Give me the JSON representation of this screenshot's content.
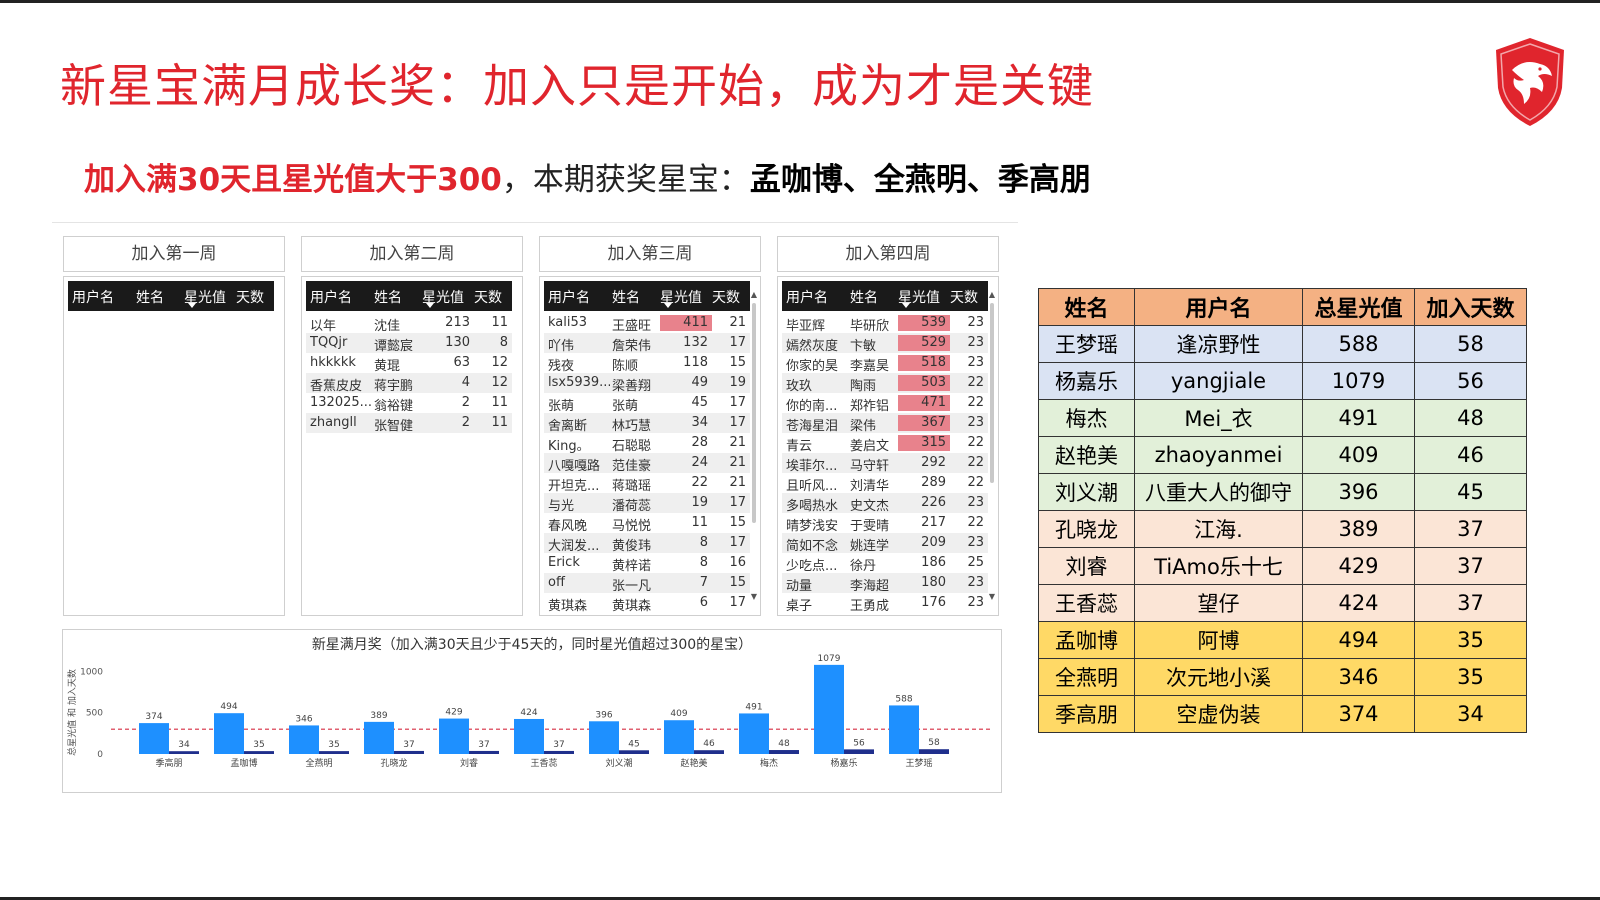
{
  "title": "新星宝满月成长奖：加入只是开始，成为才是关键",
  "subtitle": {
    "red": "加入满30天且星光值大于300",
    "sep": "，",
    "middle": "本期获奖星宝：",
    "winners": "孟咖博、全燕明、季高朋"
  },
  "colors": {
    "title_red": "#e0252d",
    "highlight": "#e8828c",
    "bar_total": "#1e90ff",
    "bar_days": "#1f2f8c",
    "threshold": "#e06070"
  },
  "columns": {
    "user": "用户名",
    "name": "姓名",
    "star": "星光值",
    "days": "天数"
  },
  "weeks": [
    {
      "title": "加入第一周",
      "rows": []
    },
    {
      "title": "加入第二周",
      "rows": [
        {
          "user": "以年",
          "name": "沈佳",
          "star": "213",
          "days": "11"
        },
        {
          "user": "TQQjr",
          "name": "谭懿宸",
          "star": "130",
          "days": "8"
        },
        {
          "user": "hkkkkk",
          "name": "黄琨",
          "star": "63",
          "days": "12"
        },
        {
          "user": "香蕉皮皮",
          "name": "蒋宇鹏",
          "star": "4",
          "days": "12"
        },
        {
          "user": "132025...",
          "name": "翁裕键",
          "star": "2",
          "days": "11"
        },
        {
          "user": "zhangll",
          "name": "张智健",
          "star": "2",
          "days": "11"
        }
      ]
    },
    {
      "title": "加入第三周",
      "rows": [
        {
          "user": "kali53",
          "name": "王盛旺",
          "star": "411",
          "days": "21",
          "hl": true
        },
        {
          "user": "吖伟",
          "name": "詹荣伟",
          "star": "132",
          "days": "17"
        },
        {
          "user": "残夜",
          "name": "陈顺",
          "star": "118",
          "days": "15"
        },
        {
          "user": "lsx5939...",
          "name": "梁善翔",
          "star": "49",
          "days": "19"
        },
        {
          "user": "张萌",
          "name": "张萌",
          "star": "45",
          "days": "17"
        },
        {
          "user": "舍离断",
          "name": "林巧慧",
          "star": "34",
          "days": "17"
        },
        {
          "user": "King。",
          "name": "石聪聪",
          "star": "28",
          "days": "21"
        },
        {
          "user": "八嘎嘎路",
          "name": "范佳豪",
          "star": "24",
          "days": "21"
        },
        {
          "user": "开坦克...",
          "name": "蒋璐瑶",
          "star": "22",
          "days": "21"
        },
        {
          "user": "与光",
          "name": "潘荷蕊",
          "star": "19",
          "days": "17"
        },
        {
          "user": "春风晚",
          "name": "马悦悦",
          "star": "11",
          "days": "15"
        },
        {
          "user": "大润发...",
          "name": "黄俊玮",
          "star": "8",
          "days": "17"
        },
        {
          "user": "Erick",
          "name": "黄梓诺",
          "star": "8",
          "days": "16"
        },
        {
          "user": "off",
          "name": "张一凡",
          "star": "7",
          "days": "15"
        },
        {
          "user": "黄琪森",
          "name": "黄琪森",
          "star": "6",
          "days": "17"
        }
      ]
    },
    {
      "title": "加入第四周",
      "rows": [
        {
          "user": "毕亚辉",
          "name": "毕研欣",
          "star": "539",
          "days": "23",
          "hl": true
        },
        {
          "user": "嫣然灰度",
          "name": "卞敏",
          "star": "529",
          "days": "23",
          "hl": true
        },
        {
          "user": "你家的昊",
          "name": "李嘉昊",
          "star": "518",
          "days": "23",
          "hl": true
        },
        {
          "user": "玫玖",
          "name": "陶雨",
          "star": "503",
          "days": "22",
          "hl": true
        },
        {
          "user": "你的南...",
          "name": "郑祚铝",
          "star": "471",
          "days": "22",
          "hl": true
        },
        {
          "user": "苍海星泪",
          "name": "梁伟",
          "star": "367",
          "days": "23",
          "hl": true
        },
        {
          "user": "青云",
          "name": "姜启文",
          "star": "315",
          "days": "22",
          "hl": true
        },
        {
          "user": "埃菲尔...",
          "name": "马守轩",
          "star": "292",
          "days": "22"
        },
        {
          "user": "且听风...",
          "name": "刘清华",
          "star": "289",
          "days": "22"
        },
        {
          "user": "多喝热水",
          "name": "史文杰",
          "star": "226",
          "days": "23"
        },
        {
          "user": "晴梦浅安",
          "name": "于雯晴",
          "star": "217",
          "days": "22"
        },
        {
          "user": "简如不念",
          "name": "姚连学",
          "star": "209",
          "days": "23"
        },
        {
          "user": "少吃点...",
          "name": "徐丹",
          "star": "186",
          "days": "25"
        },
        {
          "user": "动量",
          "name": "李海超",
          "star": "180",
          "days": "23"
        },
        {
          "user": "桌子",
          "name": "王勇成",
          "star": "176",
          "days": "23"
        }
      ]
    }
  ],
  "chart_data": {
    "type": "bar",
    "title": "新星满月奖（加入满30天且少于45天的，同时星光值超过300的星宝）",
    "ylabel": "总星光值 和 加入天数",
    "ylim": [
      0,
      1150
    ],
    "yticks": [
      0,
      500,
      1000
    ],
    "threshold": 300,
    "categories": [
      "季高朋",
      "孟咖博",
      "全燕明",
      "孔晓龙",
      "刘睿",
      "王香蕊",
      "刘义潮",
      "赵艳美",
      "梅杰",
      "杨嘉乐",
      "王梦瑶"
    ],
    "series": [
      {
        "values": [
          374,
          494,
          346,
          389,
          429,
          424,
          396,
          409,
          491,
          1079,
          588
        ]
      },
      {
        "values": [
          34,
          35,
          35,
          37,
          37,
          37,
          45,
          46,
          48,
          56,
          58
        ]
      }
    ]
  },
  "award": {
    "headers": [
      "姓名",
      "用户名",
      "总星光值",
      "加入天数"
    ],
    "rows": [
      {
        "name": "王梦瑶",
        "user": "逢凉野性",
        "star": "588",
        "days": "58",
        "group": "blue"
      },
      {
        "name": "杨嘉乐",
        "user": "yangjiale",
        "star": "1079",
        "days": "56",
        "group": "blue"
      },
      {
        "name": "梅杰",
        "user": "Mei_衣",
        "star": "491",
        "days": "48",
        "group": "green"
      },
      {
        "name": "赵艳美",
        "user": "zhaoyanmei",
        "star": "409",
        "days": "46",
        "group": "green"
      },
      {
        "name": "刘义潮",
        "user": "八重大人的御守",
        "star": "396",
        "days": "45",
        "group": "green"
      },
      {
        "name": "孔晓龙",
        "user": "江海.",
        "star": "389",
        "days": "37",
        "group": "pink"
      },
      {
        "name": "刘睿",
        "user": "TiAmo乐十七",
        "star": "429",
        "days": "37",
        "group": "pink"
      },
      {
        "name": "王香蕊",
        "user": "望仔",
        "star": "424",
        "days": "37",
        "group": "pink"
      },
      {
        "name": "孟咖博",
        "user": "阿博",
        "star": "494",
        "days": "35",
        "group": "yellow"
      },
      {
        "name": "全燕明",
        "user": "次元地小溪",
        "star": "346",
        "days": "35",
        "group": "yellow"
      },
      {
        "name": "季高朋",
        "user": "空虚伪装",
        "star": "374",
        "days": "34",
        "group": "yellow"
      }
    ]
  }
}
